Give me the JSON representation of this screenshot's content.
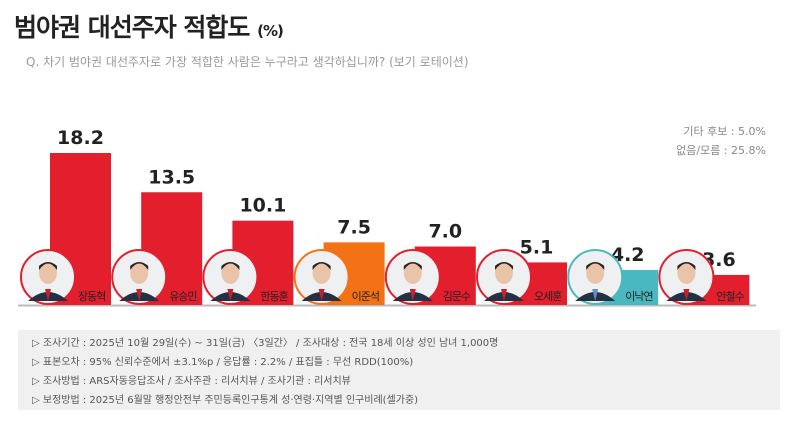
{
  "title": "범야권 대선주자 적합도",
  "title_unit": "(%)",
  "subtitle": "Q. 차기 범야권 대선주자로 가장 적합한 사람은 누구라고 생각하십니까? (보기 로테이션)",
  "others": [
    "기타 후보 : 5.0%",
    "없음/모름 : 25.8%"
  ],
  "chart_data": {
    "type": "bar",
    "categories": [
      "장동혁",
      "유승민",
      "한동훈",
      "이준석",
      "김문수",
      "오세훈",
      "이낙연",
      "안철수"
    ],
    "values": [
      18.2,
      13.5,
      10.1,
      7.5,
      7.0,
      5.1,
      4.2,
      3.6
    ],
    "labels": [
      "18.2",
      "13.5",
      "10.1",
      "7.5",
      "7.0",
      "5.1",
      "4.2",
      "3.6"
    ],
    "colors": [
      "#e31e2d",
      "#e31e2d",
      "#e31e2d",
      "#f47216",
      "#e31e2d",
      "#e31e2d",
      "#4ab8c0",
      "#e31e2d"
    ],
    "ylim": [
      0,
      20
    ],
    "grid": false
  },
  "notes": [
    "▷ 조사기간 : 2025년 10월 29일(수) ~ 31일(금) 〈3일간〉 / 조사대상 : 전국 18세 이상 성인 남녀 1,000명",
    "▷ 표본오차 : 95% 신뢰수준에서 ±3.1%p / 응답률 : 2.2% / 표집틀 : 무선 RDD(100%)",
    "▷ 조사방법 : ARS자동응답조사 / 조사주관 : 리서치뷰 / 조사기관 : 리서치뷰",
    "▷ 보정방법 : 2025년 6월말 행정안전부 주민등록인구통계 성·연령·지역별 인구비례(셀가중)"
  ]
}
